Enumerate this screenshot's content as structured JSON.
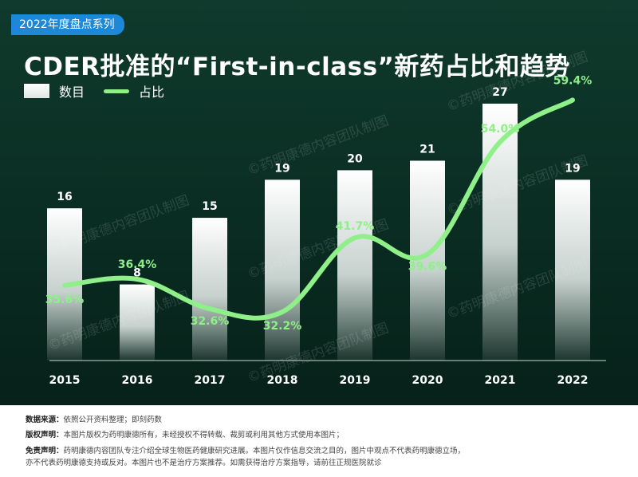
{
  "badge": "2022年度盘点系列",
  "title": "CDER批准的“First-in-class”新药占比和趋势",
  "legend": {
    "bars": "数目",
    "line": "占比"
  },
  "watermark": "©药明康德内容团队制图",
  "colors": {
    "panel_top": "#0f3a2c",
    "panel_bottom": "#062119",
    "line": "#8ff08a",
    "badge": "#1e88d8"
  },
  "chart_data": {
    "type": "bar",
    "categories": [
      "2015",
      "2016",
      "2017",
      "2018",
      "2019",
      "2020",
      "2021",
      "2022"
    ],
    "series": [
      {
        "name": "数目",
        "type": "bar",
        "values": [
          16,
          8,
          15,
          19,
          20,
          21,
          27,
          19
        ]
      },
      {
        "name": "占比",
        "type": "line",
        "values": [
          35.6,
          36.4,
          32.6,
          32.2,
          41.7,
          39.6,
          54.0,
          59.4
        ],
        "labels": [
          "35.6%",
          "36.4%",
          "32.6%",
          "32.2%",
          "41.7%",
          "39.6%",
          "54.0%",
          "59.4%"
        ]
      }
    ],
    "bar_ylim": [
      0,
      28
    ],
    "line_ylim": [
      28,
      62
    ],
    "legend_position": "top-left",
    "grid": false
  },
  "footer": {
    "source_label": "数据来源：",
    "source_text": "依照公开资料整理；即刻药数",
    "copyright_label": "版权声明：",
    "copyright_text": "本图片版权为药明康德所有，未经授权不得转载、裁剪或利用其他方式使用本图片；",
    "disclaimer_label": "免责声明：",
    "disclaimer_text1": "药明康德内容团队专注介绍全球生物医药健康研究进展。本图片仅作信息交流之目的，图片中观点不代表药明康德立场，",
    "disclaimer_text2": "亦不代表药明康德支持或反对。本图片也不是治疗方案推荐。如需获得治疗方案指导，请前往正规医院就诊"
  }
}
